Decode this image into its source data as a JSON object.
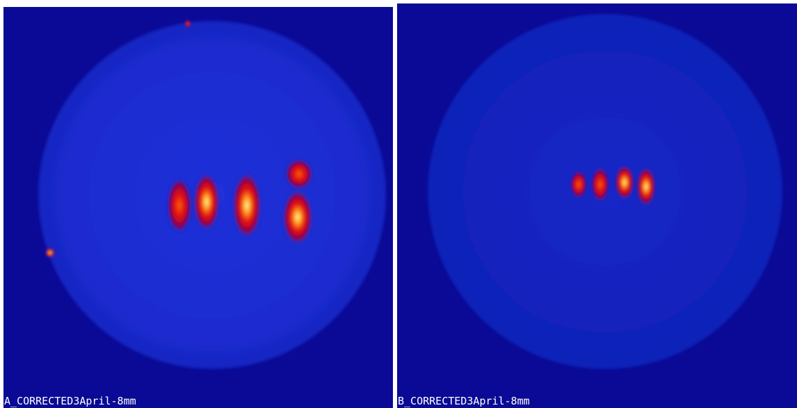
{
  "panels": [
    {
      "label": "A_CORRECTED3April-8mm"
    },
    {
      "label": "B_CORRECTED3April-8mm"
    }
  ]
}
